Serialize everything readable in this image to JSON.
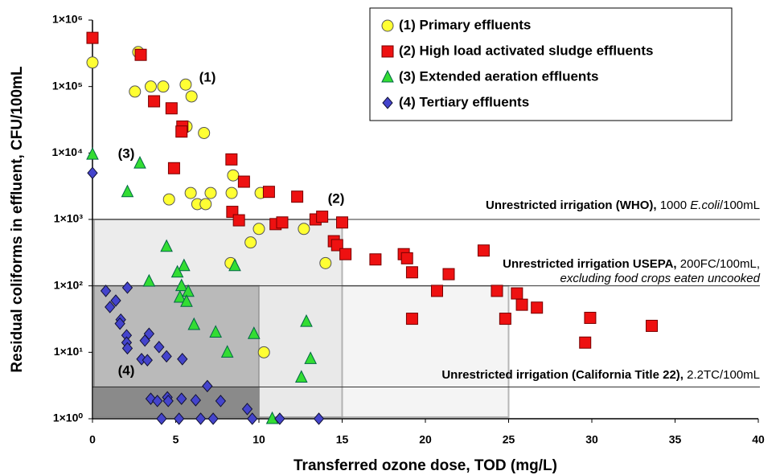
{
  "chart_data": {
    "type": "scatter",
    "xlabel": "Transferred ozone dose, TOD (mg/L)",
    "ylabel": "Residual coliforms in effluent, CFU/100mL",
    "xlim": [
      0,
      40
    ],
    "ylim": [
      1,
      1000000
    ],
    "log_y": true,
    "xticks": [
      0,
      5,
      10,
      15,
      20,
      25,
      30,
      35,
      40
    ],
    "yticks": [
      {
        "value": 1,
        "label": "1×10⁰"
      },
      {
        "value": 10,
        "label": "1×10¹"
      },
      {
        "value": 100,
        "label": "1×10²"
      },
      {
        "value": 1000,
        "label": "1×10³"
      },
      {
        "value": 10000,
        "label": "1×10⁴"
      },
      {
        "value": 100000,
        "label": "1×10⁵"
      },
      {
        "value": 1000000,
        "label": "1×10⁶"
      }
    ],
    "legend": "upper right",
    "regions": [
      {
        "x": [
          0,
          25
        ],
        "y": [
          1,
          100
        ],
        "color": "#f0f0f0"
      },
      {
        "x": [
          0,
          15
        ],
        "y": [
          1,
          1000
        ],
        "color": "#e6e6e6"
      },
      {
        "x": [
          0,
          10
        ],
        "y": [
          1,
          100
        ],
        "color": "#a9a9a9"
      },
      {
        "x": [
          0,
          10
        ],
        "y": [
          1,
          3
        ],
        "color": "#7a7a7a"
      }
    ],
    "reference_lines": [
      1000,
      100,
      3
    ],
    "annotations": [
      {
        "parts": [
          {
            "text": "Unrestricted irrigation (WHO),",
            "style": "bold"
          },
          {
            "text": " 1000 ",
            "style": "normal"
          },
          {
            "text": "E.coli",
            "style": "italic"
          },
          {
            "text": "/100mL",
            "style": "normal"
          }
        ]
      },
      {
        "parts": [
          {
            "text": "Unrestricted irrigation USEPA,",
            "style": "bold"
          },
          {
            "text": " 200FC/100mL,",
            "style": "normal"
          }
        ]
      },
      {
        "parts": [
          {
            "text": "excluding food crops eaten uncooked",
            "style": "italic"
          }
        ]
      },
      {
        "parts": [
          {
            "text": "Unrestricted irrigation (California Title 22),",
            "style": "bold"
          },
          {
            "text": " 2.2TC/100mL",
            "style": "normal"
          }
        ]
      }
    ],
    "group_labels": [
      "(1)",
      "(2)",
      "(3)",
      "(4)"
    ],
    "series": [
      {
        "name": "(1) Primary effluents",
        "color": "#ffff33",
        "marker": "circle",
        "x": [
          0,
          2.75,
          2.55,
          3.5,
          4.25,
          5.6,
          5.95,
          5.65,
          6.7,
          4.6,
          5.9,
          6.3,
          6.8,
          7.1,
          8.45,
          8.36,
          10.1,
          10,
          9.5,
          8.3,
          12.7,
          14,
          10.3
        ],
        "values": [
          230000,
          330000,
          84000,
          100000,
          100000,
          107000,
          71000,
          25000,
          20000,
          2000,
          2500,
          1700,
          1700,
          2500,
          4600,
          2500,
          2500,
          720,
          450,
          220,
          720,
          220,
          10
        ]
      },
      {
        "name": "(2) High load activated sludge effluents",
        "color": "#ee1111",
        "marker": "square",
        "x": [
          0,
          2.9,
          3.7,
          4.75,
          5.4,
          5.35,
          4.9,
          8.35,
          9.1,
          8.4,
          8.8,
          10.6,
          12.3,
          11,
          11.4,
          13.4,
          13.8,
          15,
          14.5,
          14.7,
          15.2,
          17,
          18.7,
          18.9,
          19.2,
          19.2,
          21.4,
          20.7,
          23.5,
          24.3,
          24.8,
          25.5,
          25.8,
          26.7,
          29.6,
          29.9,
          33.6
        ],
        "values": [
          540000,
          300000,
          60000,
          47000,
          25000,
          21000,
          5900,
          8000,
          3700,
          1300,
          970,
          2600,
          2200,
          850,
          900,
          1000,
          1100,
          900,
          470,
          410,
          300,
          250,
          300,
          260,
          160,
          32,
          150,
          84,
          340,
          84,
          32,
          77,
          52,
          47,
          14,
          33,
          25
        ]
      },
      {
        "name": "(3) Extended aeration effluents",
        "color": "#33dd33",
        "marker": "triangle",
        "x": [
          0,
          2.85,
          2.1,
          4.45,
          3.4,
          5.5,
          5.1,
          5.35,
          5.25,
          5.75,
          5.65,
          6.1,
          7.4,
          8.1,
          8.55,
          9.7,
          12.85,
          13.1,
          12.55,
          10.8
        ],
        "values": [
          9500,
          7000,
          2600,
          390,
          117,
          200,
          160,
          100,
          67,
          82,
          58,
          26,
          20,
          10,
          200,
          19,
          29,
          8,
          4.2,
          1
        ]
      },
      {
        "name": "(4) Tertiary effluents",
        "color": "#4444cc",
        "marker": "diamond",
        "x": [
          0,
          0.8,
          2.1,
          1.05,
          1.4,
          1.7,
          1.65,
          2.05,
          2.05,
          2.1,
          3.4,
          3.15,
          2.95,
          3.3,
          4,
          4.45,
          5.4,
          6.9,
          3.5,
          3.9,
          4.5,
          4.55,
          5.35,
          6.2,
          7.7,
          9.3,
          4.15,
          5.2,
          6.5,
          7.25,
          9.6,
          11.25,
          13.6
        ],
        "values": [
          5000,
          84,
          94,
          48,
          60,
          31,
          27,
          18,
          14,
          11.5,
          19,
          15,
          7.9,
          7.6,
          12,
          8.7,
          7.9,
          3.1,
          2,
          1.85,
          2.1,
          1.85,
          2,
          1.9,
          1.85,
          1.4,
          1,
          1,
          1,
          1,
          1,
          1,
          1
        ]
      }
    ]
  }
}
